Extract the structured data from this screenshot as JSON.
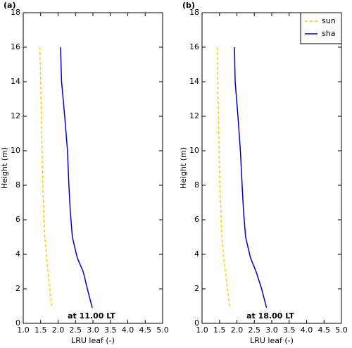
{
  "chart_data": [
    {
      "type": "line",
      "title": "(a)",
      "ylabel": "Height (m)",
      "xlabel": "LRU leaf (-)",
      "annotation": "at 11.00 LT",
      "y": [
        16,
        14,
        12,
        10,
        8,
        6.5,
        5,
        3.8,
        3,
        2,
        0.9
      ],
      "series": [
        {
          "name": "sun",
          "color": "#ffcc00",
          "dash": true,
          "x": [
            1.48,
            1.5,
            1.52,
            1.54,
            1.56,
            1.59,
            1.62,
            1.67,
            1.71,
            1.76,
            1.82
          ]
        },
        {
          "name": "sha",
          "color": "#0000cc",
          "dash": false,
          "x": [
            2.07,
            2.1,
            2.19,
            2.27,
            2.31,
            2.35,
            2.41,
            2.55,
            2.72,
            2.84,
            2.98
          ]
        }
      ],
      "xlim": [
        1.0,
        5.0
      ],
      "xticks": [
        {
          "value": 1.0,
          "label": "1.0"
        },
        {
          "value": 1.5,
          "label": "1.5"
        },
        {
          "value": 2.0,
          "label": "2.0"
        },
        {
          "value": 2.5,
          "label": "2.5"
        },
        {
          "value": 3.0,
          "label": "3.0"
        },
        {
          "value": 3.5,
          "label": "3.5"
        },
        {
          "value": 4.0,
          "label": "4.0"
        },
        {
          "value": 4.5,
          "label": "4.5"
        },
        {
          "value": 5.0,
          "label": "5.0"
        }
      ],
      "ylim": [
        0,
        18
      ],
      "yticks": [
        0,
        2,
        4,
        6,
        8,
        10,
        12,
        14,
        16,
        18
      ],
      "legend": false
    },
    {
      "type": "line",
      "title": "(b)",
      "ylabel": "Height (m)",
      "xlabel": "LRU leaf (-)",
      "annotation": "at 18.00 LT",
      "y": [
        16,
        14,
        12,
        10,
        8,
        6.5,
        5,
        3.8,
        3,
        2,
        0.9
      ],
      "series": [
        {
          "name": "sun",
          "color": "#ffcc00",
          "dash": true,
          "x": [
            1.44,
            1.45,
            1.47,
            1.49,
            1.51,
            1.54,
            1.57,
            1.62,
            1.67,
            1.73,
            1.8
          ]
        },
        {
          "name": "sha",
          "color": "#0000cc",
          "dash": false,
          "x": [
            1.93,
            1.95,
            2.03,
            2.1,
            2.15,
            2.19,
            2.25,
            2.39,
            2.55,
            2.71,
            2.85
          ]
        }
      ],
      "xlim": [
        1.0,
        5.0
      ],
      "xticks": [
        {
          "value": 1.0,
          "label": "1.0"
        },
        {
          "value": 1.5,
          "label": "1.5"
        },
        {
          "value": 2.0,
          "label": "2.0"
        },
        {
          "value": 2.5,
          "label": "2.5"
        },
        {
          "value": 3.0,
          "label": "3.0"
        },
        {
          "value": 3.5,
          "label": "3.5"
        },
        {
          "value": 4.0,
          "label": "4.0"
        },
        {
          "value": 4.5,
          "label": "4.5"
        },
        {
          "value": 5.0,
          "label": "5.0"
        }
      ],
      "ylim": [
        0,
        18
      ],
      "yticks": [
        0,
        2,
        4,
        6,
        8,
        10,
        12,
        14,
        16,
        18
      ],
      "legend": "upper right"
    }
  ]
}
